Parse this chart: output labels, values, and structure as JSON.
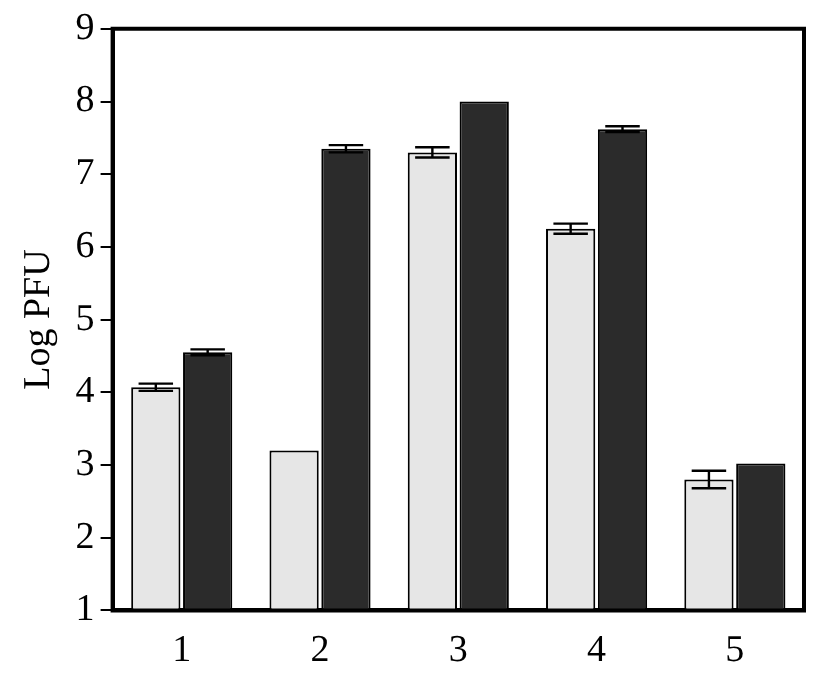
{
  "chart_data": {
    "type": "bar",
    "ylabel": "Log PFU",
    "categories": [
      "1",
      "2",
      "3",
      "4",
      "5"
    ],
    "series": [
      {
        "color": "#e6e6e6",
        "values": [
          4.07,
          3.2,
          7.3,
          6.25,
          2.8
        ],
        "errors": [
          0.05,
          null,
          0.07,
          0.07,
          0.12
        ]
      },
      {
        "color": "#2b2b2b",
        "values": [
          4.55,
          7.35,
          8.0,
          7.62,
          3.02
        ],
        "errors": [
          0.04,
          0.05,
          null,
          0.04,
          null
        ]
      }
    ],
    "ylim": [
      1,
      9
    ],
    "yticks": [
      1,
      2,
      3,
      4,
      5,
      6,
      7,
      8,
      9
    ],
    "grid": false,
    "legend": false
  }
}
